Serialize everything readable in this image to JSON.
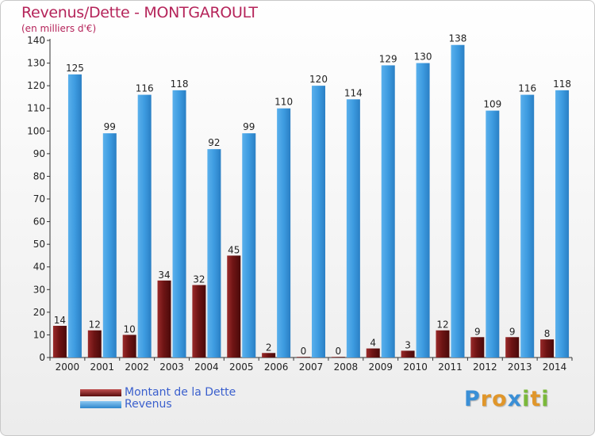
{
  "title": "Revenus/Dette - MONTGAROULT",
  "subtitle": "(en milliers d'€)",
  "colors": {
    "dette": "#7a1a1a",
    "revenus": "#3d9be0",
    "title": "#b5245a",
    "legend_text": "#3a5fcd"
  },
  "chart_data": {
    "type": "bar",
    "categories": [
      "2000",
      "2001",
      "2002",
      "2003",
      "2004",
      "2005",
      "2006",
      "2007",
      "2008",
      "2009",
      "2010",
      "2011",
      "2012",
      "2013",
      "2014"
    ],
    "series": [
      {
        "name": "Montant de la Dette",
        "values": [
          14,
          12,
          10,
          34,
          32,
          45,
          2,
          0,
          0,
          4,
          3,
          12,
          9,
          9,
          8
        ]
      },
      {
        "name": "Revenus",
        "values": [
          125,
          99,
          116,
          118,
          92,
          99,
          110,
          120,
          114,
          129,
          130,
          138,
          109,
          116,
          118
        ]
      }
    ],
    "ylim": [
      0,
      140
    ],
    "yticks": [
      0,
      10,
      20,
      30,
      40,
      50,
      60,
      70,
      80,
      90,
      100,
      110,
      120,
      130,
      140
    ],
    "xlabel": "",
    "ylabel": "",
    "grid": false,
    "legend": "bottom-left"
  },
  "legend": [
    {
      "label": "Montant de la Dette",
      "color": "#7a1a1a"
    },
    {
      "label": "Revenus",
      "color": "#3d9be0"
    }
  ],
  "logo": {
    "text": "Proxiti",
    "letters": [
      {
        "ch": "P",
        "color": "#3a8fd6"
      },
      {
        "ch": "r",
        "color": "#e0962a"
      },
      {
        "ch": "o",
        "color": "#e0962a"
      },
      {
        "ch": "x",
        "color": "#3a8fd6"
      },
      {
        "ch": "i",
        "color": "#7ab83a"
      },
      {
        "ch": "t",
        "color": "#e0962a"
      },
      {
        "ch": "i",
        "color": "#7ab83a"
      }
    ]
  }
}
